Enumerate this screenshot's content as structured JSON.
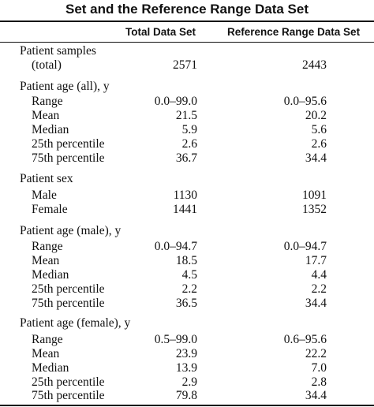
{
  "table": {
    "title": "Set and the Reference Range Data Set",
    "columns": [
      "Total Data Set",
      "Reference Range Data Set"
    ],
    "sections": [
      {
        "label": "Patient samples",
        "rows": [
          {
            "label": "(total)",
            "total": "2571",
            "reference": "2443"
          }
        ]
      },
      {
        "label": "Patient age (all), y",
        "rows": [
          {
            "label": "Range",
            "total": "0.0–99.0",
            "reference": "0.0–95.6"
          },
          {
            "label": "Mean",
            "total": "21.5",
            "reference": "20.2"
          },
          {
            "label": "Median",
            "total": "5.9",
            "reference": "5.6"
          },
          {
            "label": "25th percentile",
            "total": "2.6",
            "reference": "2.6"
          },
          {
            "label": "75th percentile",
            "total": "36.7",
            "reference": "34.4"
          }
        ]
      },
      {
        "label": "Patient sex",
        "rows": [
          {
            "label": "Male",
            "total": "1130",
            "reference": "1091"
          },
          {
            "label": "Female",
            "total": "1441",
            "reference": "1352"
          }
        ]
      },
      {
        "label": "Patient age (male), y",
        "rows": [
          {
            "label": "Range",
            "total": "0.0–94.7",
            "reference": "0.0–94.7"
          },
          {
            "label": "Mean",
            "total": "18.5",
            "reference": "17.7"
          },
          {
            "label": "Median",
            "total": "4.5",
            "reference": "4.4"
          },
          {
            "label": "25th percentile",
            "total": "2.2",
            "reference": "2.2"
          },
          {
            "label": "75th percentile",
            "total": "36.5",
            "reference": "34.4"
          }
        ]
      },
      {
        "label": "Patient age (female), y",
        "rows": [
          {
            "label": "Range",
            "total": "0.5–99.0",
            "reference": "0.6–95.6"
          },
          {
            "label": "Mean",
            "total": "23.9",
            "reference": "22.2"
          },
          {
            "label": "Median",
            "total": "13.9",
            "reference": "7.0"
          },
          {
            "label": "25th percentile",
            "total": "2.9",
            "reference": "2.8"
          },
          {
            "label": "75th percentile",
            "total": "79.8",
            "reference": "34.4"
          }
        ]
      }
    ]
  }
}
